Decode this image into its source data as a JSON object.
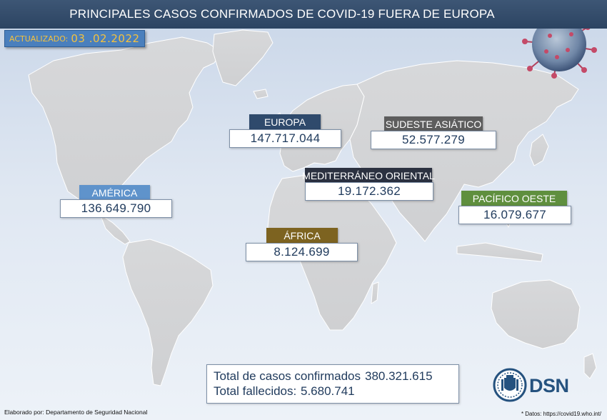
{
  "header": {
    "title": "PRINCIPALES CASOS CONFIRMADOS DE COVID-19 FUERA DE EUROPA"
  },
  "updated": {
    "label": "ACTUALIZADO:",
    "date": "03 .02.2022"
  },
  "chart_data": {
    "type": "table",
    "title": "PRINCIPALES CASOS CONFIRMADOS DE COVID-19 FUERA DE EUROPA",
    "categories": [
      "EUROPA",
      "SUDESTE ASIÁTICO",
      "AMÉRICA",
      "MEDITERRÁNEO ORIENTAL",
      "PACÍFICO OESTE",
      "ÁFRICA"
    ],
    "values": [
      147717044,
      52577279,
      136649790,
      19172362,
      16079677,
      8124699
    ],
    "regions": [
      {
        "name": "EUROPA",
        "value": "147.717.044",
        "color": "#2f4a6c"
      },
      {
        "name": "SUDESTE ASIÁTICO",
        "value": "52.577.279",
        "color": "#5d5d5d"
      },
      {
        "name": "AMÉRICA",
        "value": "136.649.790",
        "color": "#5f93cb"
      },
      {
        "name": "MEDITERRÁNEO ORIENTAL",
        "value": "19.172.362",
        "color": "#2b3140"
      },
      {
        "name": "PACÍFICO OESTE",
        "value": "16.079.677",
        "color": "#5f8f3e"
      },
      {
        "name": "ÁFRICA",
        "value": "8.124.699",
        "color": "#7d6320"
      }
    ]
  },
  "totals": {
    "cases_label": "Total de casos confirmados",
    "cases_value": "380.321.615",
    "deaths_label": "Total fallecidos:",
    "deaths_value": "5.680.741"
  },
  "footer": {
    "credit": "Elaborado por: Departamento de Seguridad Nacional",
    "source": "* Datos: https://covid19.who.int/"
  },
  "logo": {
    "text": "DSN"
  },
  "icons": {
    "virus": "coronavirus-icon",
    "seal": "spain-coat-of-arms-icon"
  }
}
